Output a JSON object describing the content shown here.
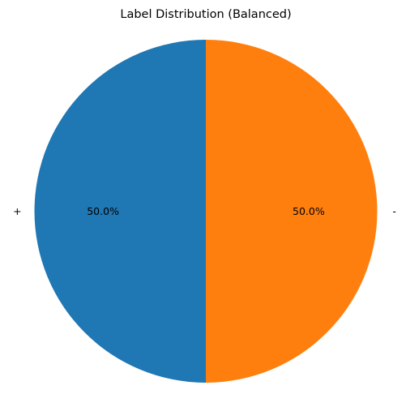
{
  "chart_data": {
    "type": "pie",
    "title": "Label Distribution (Balanced)",
    "categories": [
      "+",
      "-"
    ],
    "values": [
      50.0,
      50.0
    ],
    "value_labels": [
      "50.0%",
      "50.0%"
    ],
    "colors": [
      "#1f77b4",
      "#ff7f0e"
    ],
    "start_angle": 90,
    "legend": "none"
  }
}
